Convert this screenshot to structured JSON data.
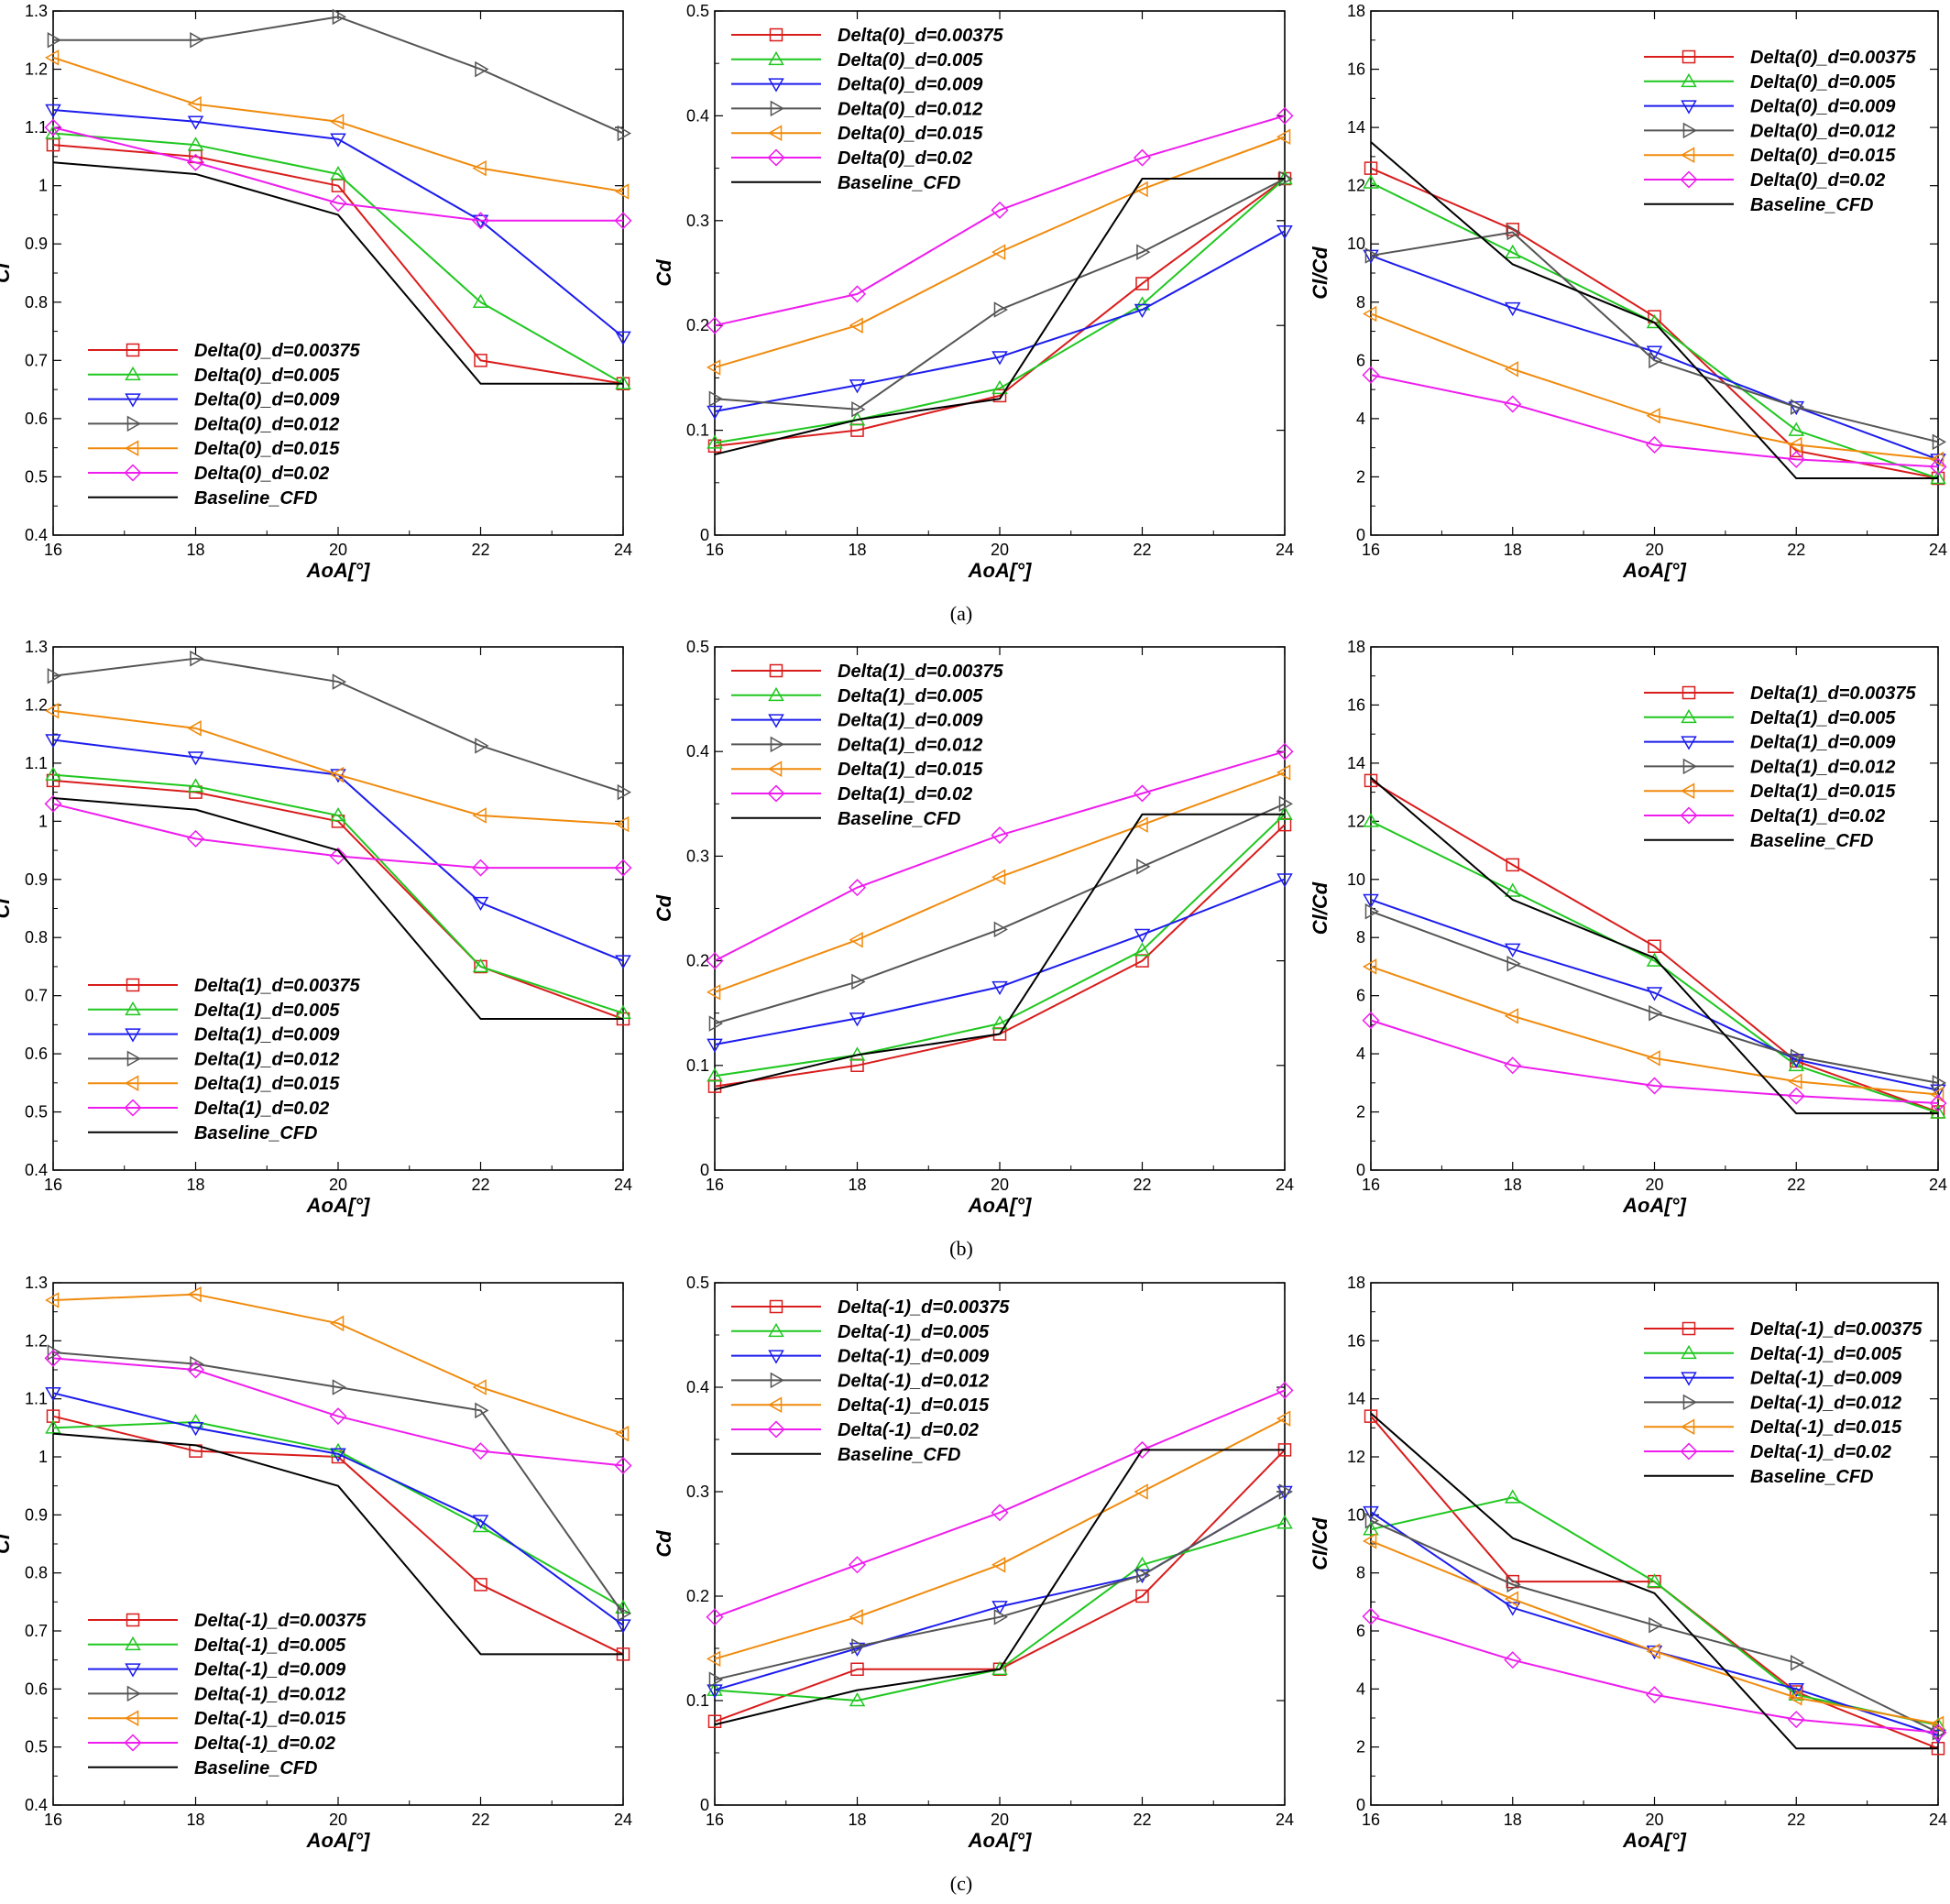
{
  "captions": [
    "(a)",
    "(b)",
    "(c)"
  ],
  "series_colors": [
    "#d91c1c",
    "#1fc71f",
    "#1c1cee",
    "#555555",
    "#f08a0c",
    "#ee1cee",
    "#000000"
  ],
  "series_markers": [
    "square",
    "triangle-up",
    "triangle-down",
    "triangle-right",
    "triangle-left",
    "diamond",
    "none"
  ],
  "chart_data": [
    {
      "type": "line",
      "row": 0,
      "col": 0,
      "xlabel": "AoA[°]",
      "ylabel": "Cl",
      "x": [
        16,
        18,
        20,
        22,
        24
      ],
      "xlim": [
        16,
        24
      ],
      "ylim": [
        0.4,
        1.3
      ],
      "xticks": [
        "16",
        "18",
        "20",
        "22",
        "24"
      ],
      "yticks": [
        "0.4",
        "0.5",
        "0.6",
        "0.7",
        "0.8",
        "0.9",
        "1",
        "1.1",
        "1.2",
        "1.3"
      ],
      "legend_position": "bottom-left",
      "series": [
        {
          "name": "Delta(0)_d=0.00375",
          "values": [
            1.07,
            1.05,
            1.0,
            0.7,
            0.66
          ]
        },
        {
          "name": "Delta(0)_d=0.005",
          "values": [
            1.09,
            1.07,
            1.02,
            0.8,
            0.66
          ]
        },
        {
          "name": "Delta(0)_d=0.009",
          "values": [
            1.13,
            1.11,
            1.08,
            0.94,
            0.74
          ]
        },
        {
          "name": "Delta(0)_d=0.012",
          "values": [
            1.25,
            1.25,
            1.29,
            1.2,
            1.09
          ]
        },
        {
          "name": "Delta(0)_d=0.015",
          "values": [
            1.22,
            1.14,
            1.11,
            1.03,
            0.99
          ]
        },
        {
          "name": "Delta(0)_d=0.02",
          "values": [
            1.1,
            1.04,
            0.97,
            0.94,
            0.94
          ]
        },
        {
          "name": "Baseline_CFD",
          "values": [
            1.04,
            1.02,
            0.95,
            0.66,
            0.66
          ]
        }
      ]
    },
    {
      "type": "line",
      "row": 0,
      "col": 1,
      "xlabel": "AoA[°]",
      "ylabel": "Cd",
      "x": [
        16,
        18,
        20,
        22,
        24
      ],
      "xlim": [
        16,
        24
      ],
      "ylim": [
        0,
        0.5
      ],
      "xticks": [
        "16",
        "18",
        "20",
        "22",
        "24"
      ],
      "yticks": [
        "0",
        "0.1",
        "0.2",
        "0.3",
        "0.4",
        "0.5"
      ],
      "legend_position": "top-left",
      "series": [
        {
          "name": "Delta(0)_d=0.00375",
          "values": [
            0.085,
            0.1,
            0.133,
            0.24,
            0.34
          ]
        },
        {
          "name": "Delta(0)_d=0.005",
          "values": [
            0.088,
            0.11,
            0.14,
            0.22,
            0.34
          ]
        },
        {
          "name": "Delta(0)_d=0.009",
          "values": [
            0.118,
            0.143,
            0.17,
            0.215,
            0.29
          ]
        },
        {
          "name": "Delta(0)_d=0.012",
          "values": [
            0.13,
            0.12,
            0.215,
            0.27,
            0.34
          ]
        },
        {
          "name": "Delta(0)_d=0.015",
          "values": [
            0.16,
            0.2,
            0.27,
            0.33,
            0.38
          ]
        },
        {
          "name": "Delta(0)_d=0.02",
          "values": [
            0.2,
            0.23,
            0.31,
            0.36,
            0.4
          ]
        },
        {
          "name": "Baseline_CFD",
          "values": [
            0.077,
            0.11,
            0.13,
            0.34,
            0.34
          ]
        }
      ]
    },
    {
      "type": "line",
      "row": 0,
      "col": 2,
      "xlabel": "AoA[°]",
      "ylabel": "Cl/Cd",
      "x": [
        16,
        18,
        20,
        22,
        24
      ],
      "xlim": [
        16,
        24
      ],
      "ylim": [
        0,
        18
      ],
      "xticks": [
        "16",
        "18",
        "20",
        "22",
        "24"
      ],
      "yticks": [
        "0",
        "2",
        "4",
        "6",
        "8",
        "10",
        "12",
        "14",
        "16",
        "18"
      ],
      "legend_position": "top-right",
      "series": [
        {
          "name": "Delta(0)_d=0.00375",
          "values": [
            12.6,
            10.5,
            7.5,
            2.9,
            1.95
          ]
        },
        {
          "name": "Delta(0)_d=0.005",
          "values": [
            12.1,
            9.7,
            7.3,
            3.6,
            1.95
          ]
        },
        {
          "name": "Delta(0)_d=0.009",
          "values": [
            9.6,
            7.8,
            6.3,
            4.4,
            2.6
          ]
        },
        {
          "name": "Delta(0)_d=0.012",
          "values": [
            9.6,
            10.4,
            6.0,
            4.4,
            3.2
          ]
        },
        {
          "name": "Delta(0)_d=0.015",
          "values": [
            7.6,
            5.7,
            4.1,
            3.1,
            2.6
          ]
        },
        {
          "name": "Delta(0)_d=0.02",
          "values": [
            5.5,
            4.5,
            3.1,
            2.6,
            2.35
          ]
        },
        {
          "name": "Baseline_CFD",
          "values": [
            13.5,
            9.3,
            7.3,
            1.95,
            1.95
          ]
        }
      ]
    },
    {
      "type": "line",
      "row": 1,
      "col": 0,
      "xlabel": "AoA[°]",
      "ylabel": "Cl",
      "x": [
        16,
        18,
        20,
        22,
        24
      ],
      "xlim": [
        16,
        24
      ],
      "ylim": [
        0.4,
        1.3
      ],
      "xticks": [
        "16",
        "18",
        "20",
        "22",
        "24"
      ],
      "yticks": [
        "0.4",
        "0.5",
        "0.6",
        "0.7",
        "0.8",
        "0.9",
        "1",
        "1.1",
        "1.2",
        "1.3"
      ],
      "legend_position": "bottom-left",
      "series": [
        {
          "name": "Delta(1)_d=0.00375",
          "values": [
            1.07,
            1.05,
            1.0,
            0.75,
            0.66
          ]
        },
        {
          "name": "Delta(1)_d=0.005",
          "values": [
            1.08,
            1.06,
            1.01,
            0.75,
            0.67
          ]
        },
        {
          "name": "Delta(1)_d=0.009",
          "values": [
            1.14,
            1.11,
            1.08,
            0.86,
            0.76
          ]
        },
        {
          "name": "Delta(1)_d=0.012",
          "values": [
            1.25,
            1.28,
            1.24,
            1.13,
            1.05
          ]
        },
        {
          "name": "Delta(1)_d=0.015",
          "values": [
            1.19,
            1.16,
            1.08,
            1.01,
            0.995
          ]
        },
        {
          "name": "Delta(1)_d=0.02",
          "values": [
            1.03,
            0.97,
            0.94,
            0.92,
            0.92
          ]
        },
        {
          "name": "Baseline_CFD",
          "values": [
            1.04,
            1.02,
            0.95,
            0.66,
            0.66
          ]
        }
      ]
    },
    {
      "type": "line",
      "row": 1,
      "col": 1,
      "xlabel": "AoA[°]",
      "ylabel": "Cd",
      "x": [
        16,
        18,
        20,
        22,
        24
      ],
      "xlim": [
        16,
        24
      ],
      "ylim": [
        0,
        0.5
      ],
      "xticks": [
        "16",
        "18",
        "20",
        "22",
        "24"
      ],
      "yticks": [
        "0",
        "0.1",
        "0.2",
        "0.3",
        "0.4",
        "0.5"
      ],
      "legend_position": "top-left",
      "series": [
        {
          "name": "Delta(1)_d=0.00375",
          "values": [
            0.08,
            0.1,
            0.13,
            0.2,
            0.33
          ]
        },
        {
          "name": "Delta(1)_d=0.005",
          "values": [
            0.09,
            0.11,
            0.14,
            0.21,
            0.34
          ]
        },
        {
          "name": "Delta(1)_d=0.009",
          "values": [
            0.12,
            0.145,
            0.175,
            0.225,
            0.278
          ]
        },
        {
          "name": "Delta(1)_d=0.012",
          "values": [
            0.14,
            0.18,
            0.23,
            0.29,
            0.35
          ]
        },
        {
          "name": "Delta(1)_d=0.015",
          "values": [
            0.17,
            0.22,
            0.28,
            0.33,
            0.38
          ]
        },
        {
          "name": "Delta(1)_d=0.02",
          "values": [
            0.2,
            0.27,
            0.32,
            0.36,
            0.4
          ]
        },
        {
          "name": "Baseline_CFD",
          "values": [
            0.077,
            0.11,
            0.13,
            0.34,
            0.34
          ]
        }
      ]
    },
    {
      "type": "line",
      "row": 1,
      "col": 2,
      "xlabel": "AoA[°]",
      "ylabel": "Cl/Cd",
      "x": [
        16,
        18,
        20,
        22,
        24
      ],
      "xlim": [
        16,
        24
      ],
      "ylim": [
        0,
        18
      ],
      "xticks": [
        "16",
        "18",
        "20",
        "22",
        "24"
      ],
      "yticks": [
        "0",
        "2",
        "4",
        "6",
        "8",
        "10",
        "12",
        "14",
        "16",
        "18"
      ],
      "legend_position": "top-right",
      "series": [
        {
          "name": "Delta(1)_d=0.00375",
          "values": [
            13.4,
            10.5,
            7.7,
            3.75,
            2.0
          ]
        },
        {
          "name": "Delta(1)_d=0.005",
          "values": [
            12.0,
            9.6,
            7.2,
            3.6,
            1.97
          ]
        },
        {
          "name": "Delta(1)_d=0.009",
          "values": [
            9.3,
            7.6,
            6.1,
            3.8,
            2.75
          ]
        },
        {
          "name": "Delta(1)_d=0.012",
          "values": [
            8.9,
            7.1,
            5.4,
            3.9,
            3.0
          ]
        },
        {
          "name": "Delta(1)_d=0.015",
          "values": [
            7.0,
            5.3,
            3.85,
            3.05,
            2.6
          ]
        },
        {
          "name": "Delta(1)_d=0.02",
          "values": [
            5.15,
            3.6,
            2.9,
            2.55,
            2.3
          ]
        },
        {
          "name": "Baseline_CFD",
          "values": [
            13.5,
            9.3,
            7.3,
            1.95,
            1.95
          ]
        }
      ]
    },
    {
      "type": "line",
      "row": 2,
      "col": 0,
      "xlabel": "AoA[°]",
      "ylabel": "Cl",
      "x": [
        16,
        18,
        20,
        22,
        24
      ],
      "xlim": [
        16,
        24
      ],
      "ylim": [
        0.4,
        1.3
      ],
      "xticks": [
        "16",
        "18",
        "20",
        "22",
        "24"
      ],
      "yticks": [
        "0.4",
        "0.5",
        "0.6",
        "0.7",
        "0.8",
        "0.9",
        "1",
        "1.1",
        "1.2",
        "1.3"
      ],
      "legend_position": "bottom-left",
      "series": [
        {
          "name": "Delta(-1)_d=0.00375",
          "values": [
            1.07,
            1.01,
            1.0,
            0.78,
            0.66
          ]
        },
        {
          "name": "Delta(-1)_d=0.005",
          "values": [
            1.05,
            1.06,
            1.01,
            0.88,
            0.74
          ]
        },
        {
          "name": "Delta(-1)_d=0.009",
          "values": [
            1.11,
            1.05,
            1.005,
            0.89,
            0.71
          ]
        },
        {
          "name": "Delta(-1)_d=0.012",
          "values": [
            1.18,
            1.16,
            1.12,
            1.08,
            0.73
          ]
        },
        {
          "name": "Delta(-1)_d=0.015",
          "values": [
            1.27,
            1.28,
            1.23,
            1.12,
            1.04
          ]
        },
        {
          "name": "Delta(-1)_d=0.02",
          "values": [
            1.17,
            1.15,
            1.07,
            1.01,
            0.985
          ]
        },
        {
          "name": "Baseline_CFD",
          "values": [
            1.04,
            1.02,
            0.95,
            0.66,
            0.66
          ]
        }
      ]
    },
    {
      "type": "line",
      "row": 2,
      "col": 1,
      "xlabel": "AoA[°]",
      "ylabel": "Cd",
      "x": [
        16,
        18,
        20,
        22,
        24
      ],
      "xlim": [
        16,
        24
      ],
      "ylim": [
        0,
        0.5
      ],
      "xticks": [
        "16",
        "18",
        "20",
        "22",
        "24"
      ],
      "yticks": [
        "0",
        "0.1",
        "0.2",
        "0.3",
        "0.4",
        "0.5"
      ],
      "legend_position": "top-left",
      "series": [
        {
          "name": "Delta(-1)_d=0.00375",
          "values": [
            0.08,
            0.13,
            0.13,
            0.2,
            0.34
          ]
        },
        {
          "name": "Delta(-1)_d=0.005",
          "values": [
            0.11,
            0.1,
            0.13,
            0.23,
            0.27
          ]
        },
        {
          "name": "Delta(-1)_d=0.009",
          "values": [
            0.11,
            0.15,
            0.19,
            0.22,
            0.3
          ]
        },
        {
          "name": "Delta(-1)_d=0.012",
          "values": [
            0.12,
            0.152,
            0.18,
            0.22,
            0.3
          ]
        },
        {
          "name": "Delta(-1)_d=0.015",
          "values": [
            0.14,
            0.18,
            0.23,
            0.3,
            0.37
          ]
        },
        {
          "name": "Delta(-1)_d=0.02",
          "values": [
            0.18,
            0.23,
            0.28,
            0.34,
            0.397
          ]
        },
        {
          "name": "Baseline_CFD",
          "values": [
            0.077,
            0.11,
            0.13,
            0.34,
            0.34
          ]
        }
      ]
    },
    {
      "type": "line",
      "row": 2,
      "col": 2,
      "xlabel": "AoA[°]",
      "ylabel": "Cl/Cd",
      "x": [
        16,
        18,
        20,
        22,
        24
      ],
      "xlim": [
        16,
        24
      ],
      "ylim": [
        0,
        18
      ],
      "xticks": [
        "16",
        "18",
        "20",
        "22",
        "24"
      ],
      "yticks": [
        "0",
        "2",
        "4",
        "6",
        "8",
        "10",
        "12",
        "14",
        "16",
        "18"
      ],
      "legend_position": "top-right",
      "series": [
        {
          "name": "Delta(-1)_d=0.00375",
          "values": [
            13.4,
            7.7,
            7.7,
            3.9,
            1.95
          ]
        },
        {
          "name": "Delta(-1)_d=0.005",
          "values": [
            9.5,
            10.6,
            7.7,
            3.8,
            2.75
          ]
        },
        {
          "name": "Delta(-1)_d=0.009",
          "values": [
            10.1,
            6.8,
            5.3,
            4.0,
            2.4
          ]
        },
        {
          "name": "Delta(-1)_d=0.012",
          "values": [
            9.8,
            7.6,
            6.2,
            4.9,
            2.5
          ]
        },
        {
          "name": "Delta(-1)_d=0.015",
          "values": [
            9.1,
            7.1,
            5.3,
            3.7,
            2.8
          ]
        },
        {
          "name": "Delta(-1)_d=0.02",
          "values": [
            6.5,
            5.0,
            3.8,
            2.95,
            2.5
          ]
        },
        {
          "name": "Baseline_CFD",
          "values": [
            13.5,
            9.2,
            7.3,
            1.95,
            1.95
          ]
        }
      ]
    }
  ]
}
